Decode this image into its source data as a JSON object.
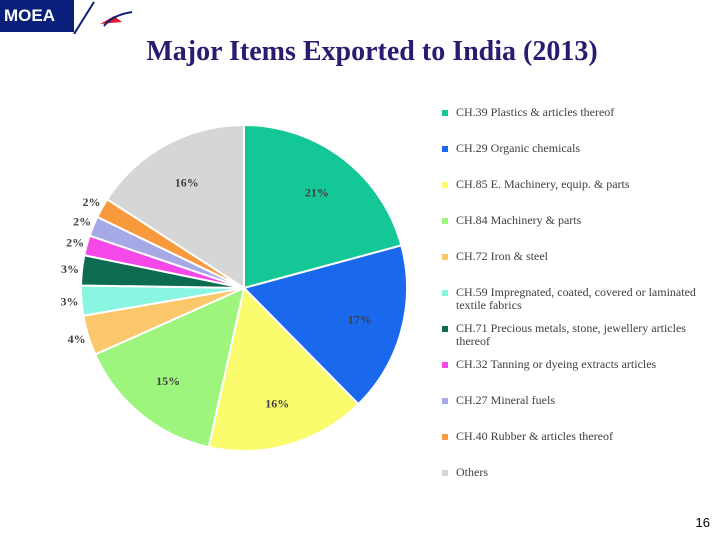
{
  "header": {
    "logo_text": "MOEA"
  },
  "page_number": "16",
  "chart_data": {
    "type": "pie",
    "title": "Major Items Exported to India (2013)",
    "legend_position": "right",
    "slices": [
      {
        "label": "CH.39  Plastics & articles thereof",
        "value": 21,
        "value_label": "21%",
        "color": "#13c796"
      },
      {
        "label": "CH.29  Organic chemicals",
        "value": 17,
        "value_label": "17%",
        "color": "#1a69ec"
      },
      {
        "label": "CH.85  E. Machinery, equip. & parts",
        "value": 16,
        "value_label": "16%",
        "color": "#fbfb6e"
      },
      {
        "label": "CH.84  Machinery & parts",
        "value": 15,
        "value_label": "15%",
        "color": "#9ef57e"
      },
      {
        "label": "CH.72  Iron & steel",
        "value": 4,
        "value_label": "4%",
        "color": "#fbc76b"
      },
      {
        "label": "CH.59  Impregnated, coated, covered or laminated textile fabrics",
        "value": 3,
        "value_label": "3%",
        "color": "#8af5e0"
      },
      {
        "label": "CH.71  Precious metals, stone, jewellery articles thereof",
        "value": 3,
        "value_label": "3%",
        "color": "#0d6b4f"
      },
      {
        "label": "CH.32  Tanning or dyeing extracts articles",
        "value": 2,
        "value_label": "2%",
        "color": "#f548e9"
      },
      {
        "label": "CH.27  Mineral fuels",
        "value": 2,
        "value_label": "2%",
        "color": "#a7a8e6"
      },
      {
        "label": "CH.40  Rubber & articles thereof",
        "value": 2,
        "value_label": "2%",
        "color": "#f89a3c"
      },
      {
        "label": "Others",
        "value": 16,
        "value_label": "16%",
        "color": "#d6d6d6"
      }
    ]
  }
}
